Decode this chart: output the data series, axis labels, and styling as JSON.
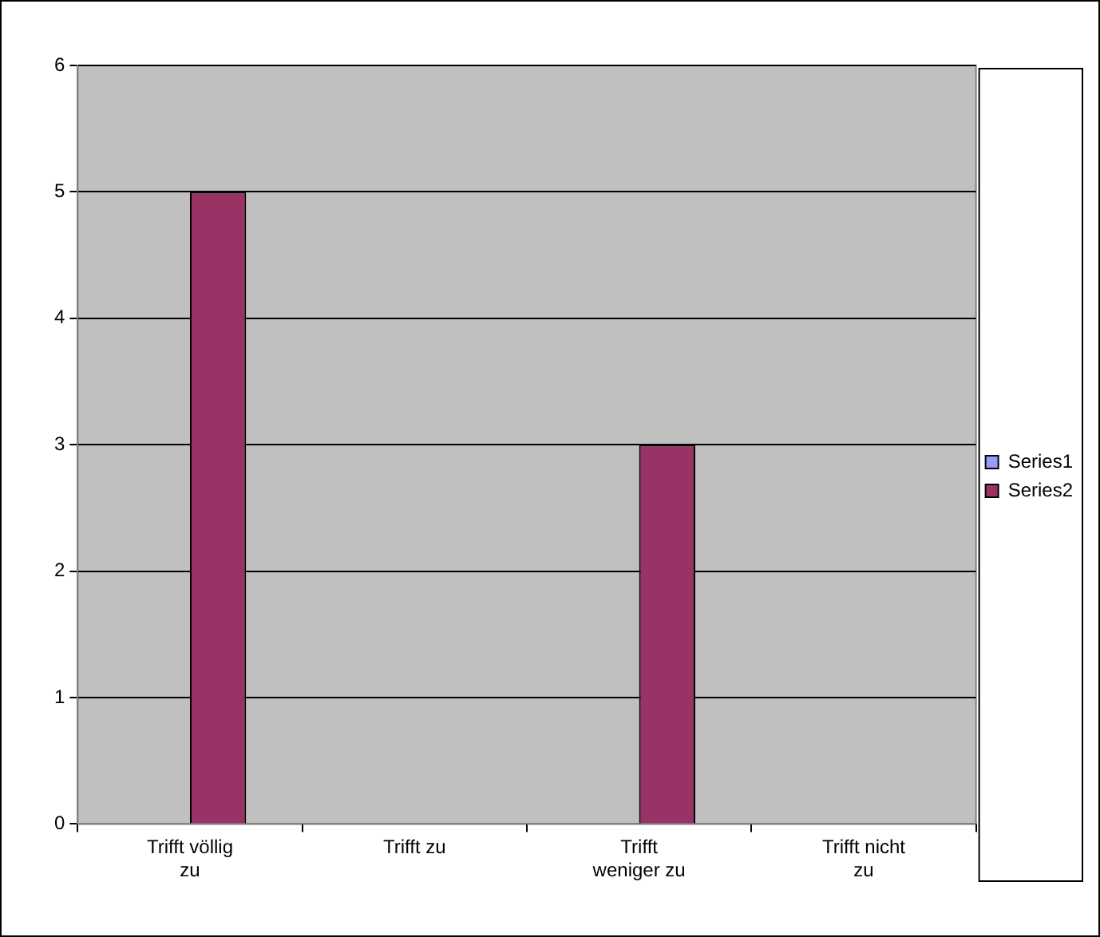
{
  "chart_data": {
    "type": "bar",
    "categories": [
      "Trifft völlig zu",
      "Trifft zu",
      "Trifft weniger zu",
      "Trifft nicht zu"
    ],
    "series": [
      {
        "name": "Series1",
        "color": "#9999ff",
        "values": [
          null,
          null,
          null,
          null
        ]
      },
      {
        "name": "Series2",
        "color": "#993366",
        "values": [
          5,
          null,
          3,
          null
        ]
      }
    ],
    "ylim": [
      0,
      6
    ],
    "yticks": [
      0,
      1,
      2,
      3,
      4,
      5,
      6
    ],
    "grid": "y",
    "legend": "right"
  }
}
